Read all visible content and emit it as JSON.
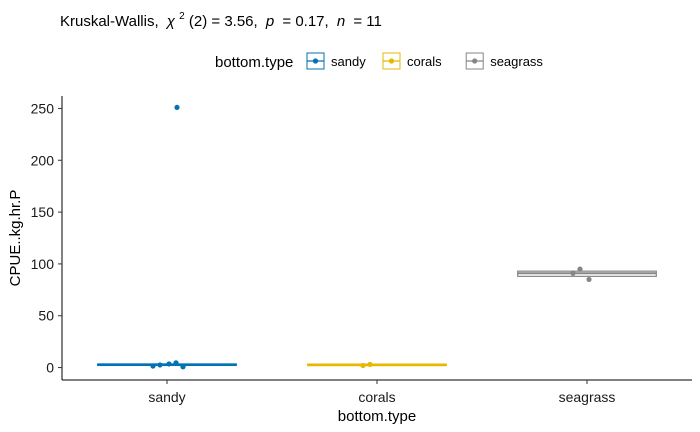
{
  "chart_data": {
    "type": "boxplot",
    "subtitle": {
      "test": "Kruskal-Wallis,",
      "chi_symbol": "χ",
      "chi_sup": "2",
      "stat": "(2) = 3.56,",
      "p_symbol": "p",
      "p_value": "= 0.17,",
      "n_symbol": "n",
      "n_value": "= 11"
    },
    "legend": {
      "title": "bottom.type",
      "position": "top",
      "items": [
        {
          "label": "sandy",
          "color": "#0072B5"
        },
        {
          "label": "corals",
          "color": "#E7B800"
        },
        {
          "label": "seagrass",
          "color": "#868686"
        }
      ]
    },
    "xlabel": "bottom.type",
    "ylabel": "CPUE..kg.hr.P",
    "ylim": [
      -12,
      262
    ],
    "yticks": [
      0,
      50,
      100,
      150,
      200,
      250
    ],
    "grid": false,
    "categories": [
      "sandy",
      "corals",
      "seagrass"
    ],
    "groups": [
      {
        "category": "sandy",
        "color": "#0072B5",
        "box": {
          "q1": 2.5,
          "median": 3.0,
          "q3": 3.5,
          "whisker_low": 2.5,
          "whisker_high": 3.5
        },
        "points": [
          1.5,
          2.5,
          3.5,
          4.5,
          0.8,
          251
        ]
      },
      {
        "category": "corals",
        "color": "#E7B800",
        "box": {
          "q1": 2.7,
          "median": 3.0,
          "q3": 3.3,
          "whisker_low": 2.7,
          "whisker_high": 3.3
        },
        "points": [
          2.0,
          3.0
        ]
      },
      {
        "category": "seagrass",
        "color": "#868686",
        "box": {
          "q1": 88,
          "median": 91,
          "q3": 93,
          "whisker_low": 88,
          "whisker_high": 93
        },
        "points": [
          91,
          95,
          85
        ]
      }
    ]
  }
}
